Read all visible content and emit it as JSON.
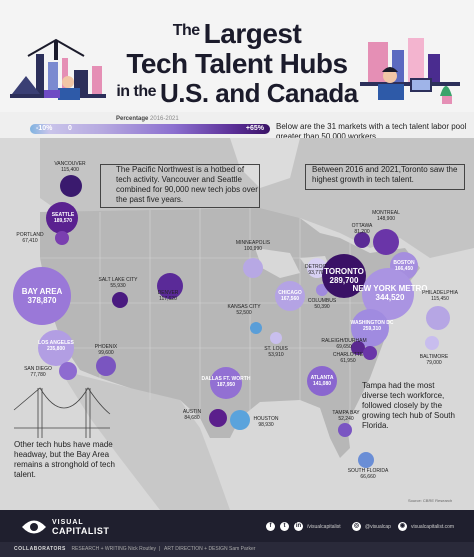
{
  "title": {
    "line1_small": "The",
    "line1": "Largest",
    "line2": "Tech Talent Hubs",
    "line3_small": "in the",
    "line3": "U.S. and Canada"
  },
  "legend": {
    "label": "Percentage",
    "period": "2016-2021",
    "min": "-10%",
    "zero": "0",
    "max": "+65%"
  },
  "intro": "Below are the 31 markets with a tech talent labor pool greater than 50,000 workers.",
  "callouts": {
    "pacific": "The Pacific Northwest is a hotbed of tech activity. Vancouver and Seattle combined for 90,000 new tech jobs over the past five years.",
    "toronto": "Between 2016 and 2021,Toronto saw the highest growth in tech talent.",
    "tampa": "Tampa had the most diverse tech workforce, followed closely by the growing tech hub of South Florida.",
    "bay": "Other tech hubs have made headway, but the Bay Area remains a stronghold of tech talent."
  },
  "markets": [
    {
      "name": "VANCOUVER",
      "value": "115,400",
      "color": "#3a1a6e"
    },
    {
      "name": "SEATTLE",
      "value": "189,570",
      "color": "#5a2190"
    },
    {
      "name": "PORTLAND",
      "value": "67,410",
      "color": "#7a3fb0"
    },
    {
      "name": "SALT LAKE CITY",
      "value": "55,930",
      "color": "#4a1a80"
    },
    {
      "name": "DENVER",
      "value": "117,620",
      "color": "#5a2a98"
    },
    {
      "name": "BAY AREA",
      "value": "378,870",
      "color": "#9a78d8"
    },
    {
      "name": "LOS ANGELES",
      "value": "235,800",
      "color": "#b29ee3"
    },
    {
      "name": "SAN DIEGO",
      "value": "77,780",
      "color": "#8e6bd0"
    },
    {
      "name": "PHOENIX",
      "value": "99,600",
      "color": "#7a55c0"
    },
    {
      "name": "MINNEAPOLIS",
      "value": "100,990",
      "color": "#b7a8e4"
    },
    {
      "name": "KANSAS CITY",
      "value": "52,500",
      "color": "#5a9ed8"
    },
    {
      "name": "ST. LOUIS",
      "value": "53,910",
      "color": "#c9bfee"
    },
    {
      "name": "DALLAS FT. WORTH",
      "value": "187,950",
      "color": "#9270d3"
    },
    {
      "name": "AUSTIN",
      "value": "84,680",
      "color": "#5b1f8c"
    },
    {
      "name": "HOUSTON",
      "value": "98,930",
      "color": "#5aa3dc"
    },
    {
      "name": "CHICAGO",
      "value": "167,560",
      "color": "#b4a3e4"
    },
    {
      "name": "DETROIT",
      "value": "93,770",
      "color": "#d7d0f2"
    },
    {
      "name": "COLUMBUS",
      "value": "50,390",
      "color": "#a08ade"
    },
    {
      "name": "TORONTO",
      "value": "289,700",
      "color": "#3a1166"
    },
    {
      "name": "OTTAWA",
      "value": "81,200",
      "color": "#5a2a95"
    },
    {
      "name": "MONTREAL",
      "value": "148,900",
      "color": "#6a35a8"
    },
    {
      "name": "BOSTON",
      "value": "166,450",
      "color": "#a58ede"
    },
    {
      "name": "NEW YORK METRO",
      "value": "344,520",
      "color": "#aa94e2"
    },
    {
      "name": "PHILADELPHIA",
      "value": "115,450",
      "color": "#b6a6e4"
    },
    {
      "name": "WASHINGTON DC",
      "value": "259,310",
      "color": "#a08be0"
    },
    {
      "name": "BALTIMORE",
      "value": "79,000",
      "color": "#c8bdee"
    },
    {
      "name": "RALEIGH/DURHAM",
      "value": "69,650",
      "color": "#5a2890"
    },
    {
      "name": "CHARLOTTE",
      "value": "61,950",
      "color": "#6a35a8"
    },
    {
      "name": "ATLANTA",
      "value": "141,080",
      "color": "#8a66cf"
    },
    {
      "name": "TAMPA BAY",
      "value": "52,240",
      "color": "#7a55c2"
    },
    {
      "name": "SOUTH FLORIDA",
      "value": "66,660",
      "color": "#6a8ed6"
    }
  ],
  "source": "Source: CBRE Research",
  "footer": {
    "brand_line1": "VISUAL",
    "brand_line2": "CAPITALIST",
    "handle1": "/visualcapitalist",
    "handle2": "@visualcap",
    "site": "visualcapitalist.com",
    "collaborators_label": "COLLABORATORS",
    "research_label": "RESEARCH + WRITING",
    "research_name": "Nick Routley",
    "art_label": "ART DIRECTION + DESIGN",
    "art_name": "Sam Parker"
  }
}
